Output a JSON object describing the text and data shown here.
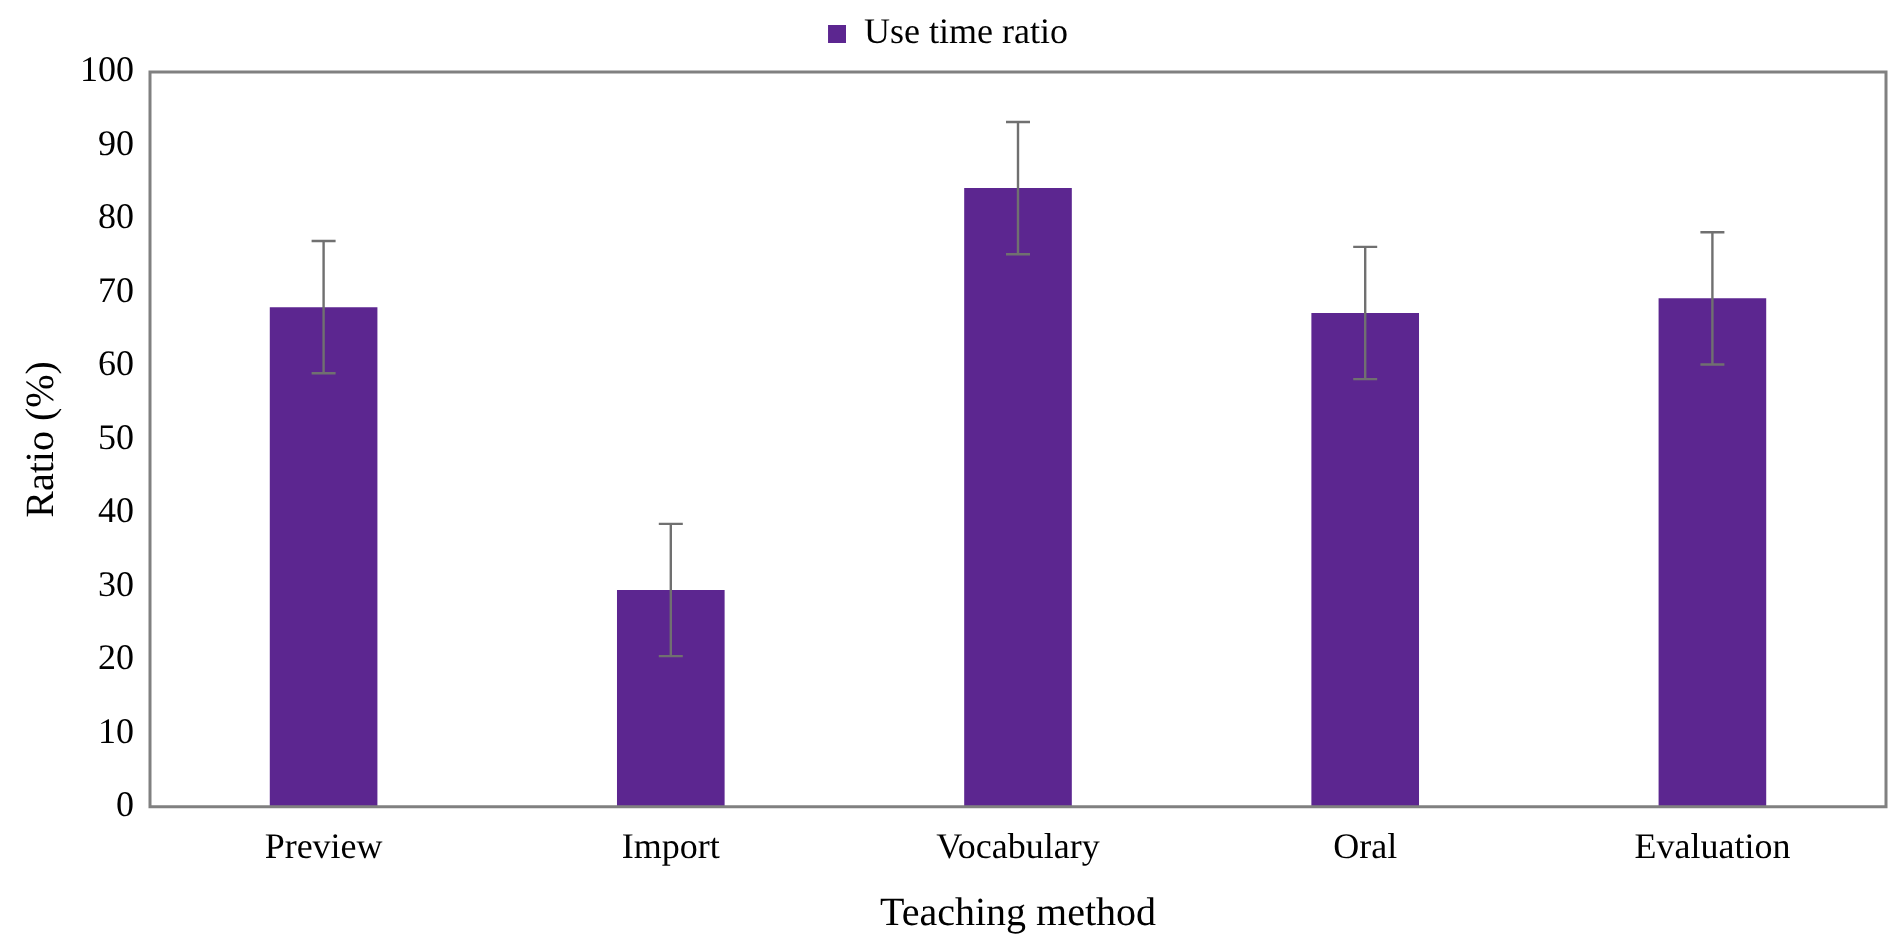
{
  "chart_data": {
    "type": "bar",
    "xlabel": "Teaching method",
    "ylabel": "Ratio (%)",
    "categories": [
      "Preview",
      "Import",
      "Vocabulary",
      "Oral",
      "Evaluation"
    ],
    "series": [
      {
        "name": "Use time ratio",
        "color": "#5c2690",
        "values": [
          68,
          29.5,
          84.2,
          67.2,
          69.2
        ],
        "errors": [
          9,
          9,
          9,
          9,
          9
        ]
      }
    ],
    "ylim": [
      0,
      100
    ],
    "yticks": [
      0,
      10,
      20,
      30,
      40,
      50,
      60,
      70,
      80,
      90,
      100
    ],
    "grid": false,
    "legend": "top"
  }
}
